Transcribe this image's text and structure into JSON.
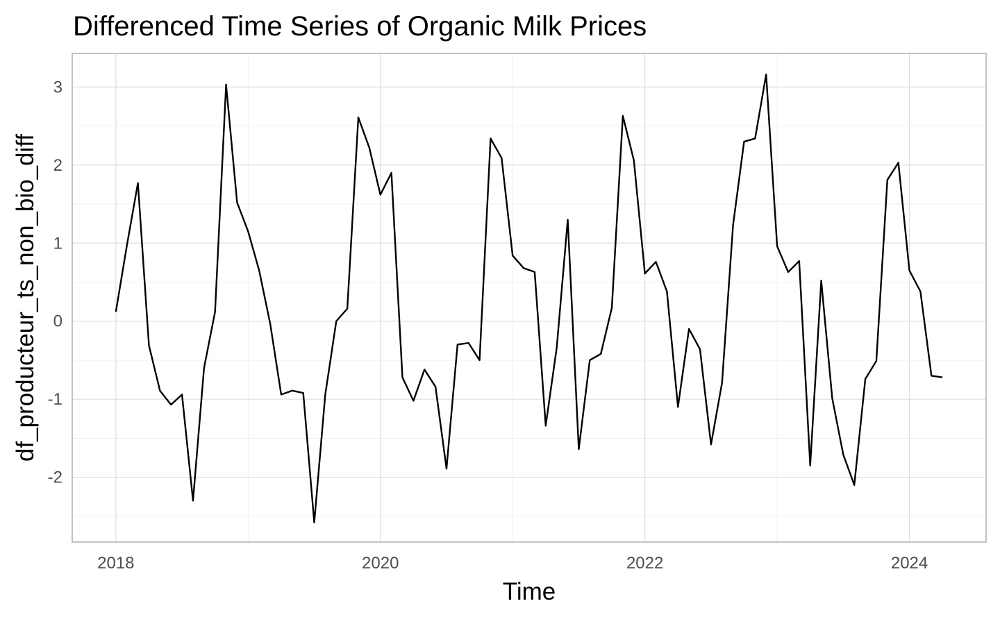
{
  "chart_data": {
    "type": "line",
    "title": "Differenced Time Series of Organic Milk Prices",
    "xlabel": "Time",
    "ylabel": "df_producteur_ts_non_bio_diff",
    "xlim": [
      2017.67,
      2024.58
    ],
    "ylim": [
      -2.83,
      3.43
    ],
    "x_ticks": [
      2018,
      2020,
      2022,
      2024
    ],
    "x_tick_labels": [
      "2018",
      "2020",
      "2022",
      "2024"
    ],
    "y_ticks": [
      -2,
      -1,
      0,
      1,
      2,
      3
    ],
    "y_tick_labels": [
      "-2",
      "-1",
      "0",
      "1",
      "2",
      "3"
    ],
    "grid": true,
    "legend": "none",
    "line_color": "#000000",
    "series": [
      {
        "x_start": 2018.0,
        "x_step": 0.0833333,
        "values": [
          0.12,
          0.97,
          1.77,
          -0.31,
          -0.89,
          -1.07,
          -0.94,
          -2.3,
          -0.6,
          0.12,
          3.03,
          1.52,
          1.15,
          0.65,
          -0.03,
          -0.94,
          -0.89,
          -0.92,
          -2.58,
          -0.94,
          0.0,
          0.16,
          2.61,
          2.22,
          1.62,
          1.9,
          -0.72,
          -1.02,
          -0.62,
          -0.84,
          -1.89,
          -0.3,
          -0.28,
          -0.5,
          2.34,
          2.09,
          0.84,
          0.68,
          0.63,
          -1.34,
          -0.34,
          1.3,
          -1.64,
          -0.5,
          -0.42,
          0.17,
          2.63,
          2.06,
          0.61,
          0.76,
          0.38,
          -1.1,
          -0.1,
          -0.36,
          -1.58,
          -0.79,
          1.23,
          2.3,
          2.34,
          3.16,
          0.96,
          0.63,
          0.77,
          -1.85,
          0.52,
          -0.99,
          -1.71,
          -2.1,
          -0.74,
          -0.51,
          1.81,
          2.03,
          0.65,
          0.38,
          -0.7,
          -0.72
        ]
      }
    ]
  }
}
